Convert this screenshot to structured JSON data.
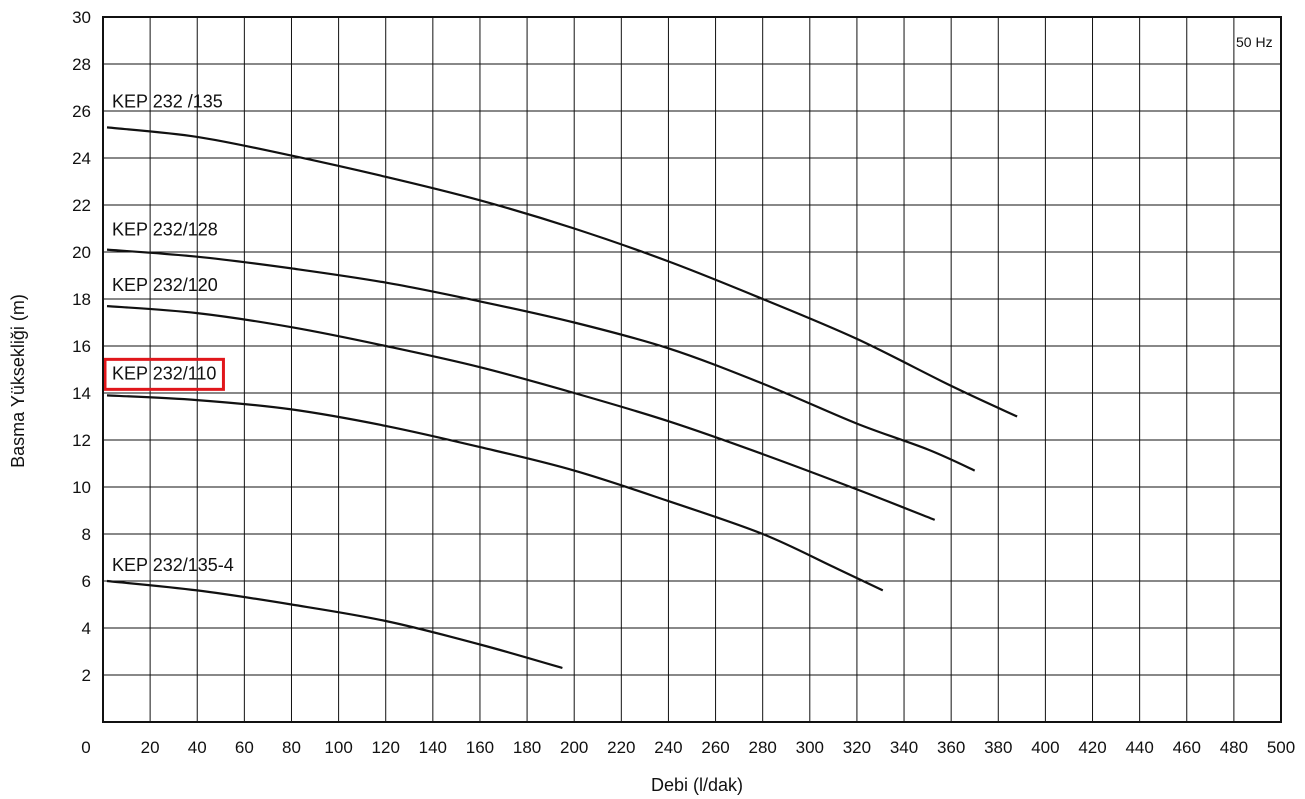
{
  "chart_data": {
    "type": "line",
    "xlabel": "Debi (l/dak)",
    "ylabel": "Basma Yüksekliği (m)",
    "xlim": [
      0,
      500
    ],
    "ylim": [
      0,
      30
    ],
    "xticks": [
      0,
      20,
      40,
      60,
      80,
      100,
      120,
      140,
      160,
      180,
      200,
      220,
      240,
      260,
      280,
      300,
      320,
      340,
      360,
      380,
      400,
      420,
      440,
      460,
      480,
      500
    ],
    "yticks": [
      2,
      4,
      6,
      8,
      10,
      12,
      14,
      16,
      18,
      20,
      22,
      24,
      26,
      28,
      30
    ],
    "grid": true,
    "annotation": "50 Hz",
    "highlighted_series": "KEP 232/110",
    "highlight_color": "#e0161b",
    "series": [
      {
        "name": "KEP 232 /135",
        "x": [
          0,
          40,
          80,
          120,
          160,
          200,
          240,
          280,
          320,
          360,
          388
        ],
        "y": [
          25.3,
          24.9,
          24.1,
          23.2,
          22.2,
          21.0,
          19.6,
          18.0,
          16.3,
          14.3,
          13.0
        ]
      },
      {
        "name": "KEP 232/128",
        "x": [
          0,
          40,
          80,
          120,
          160,
          200,
          240,
          280,
          320,
          350,
          370
        ],
        "y": [
          20.1,
          19.8,
          19.3,
          18.7,
          17.9,
          17.0,
          15.9,
          14.4,
          12.7,
          11.6,
          10.7
        ]
      },
      {
        "name": "KEP 232/120",
        "x": [
          0,
          40,
          80,
          120,
          160,
          200,
          240,
          280,
          320,
          353
        ],
        "y": [
          17.7,
          17.4,
          16.8,
          16.0,
          15.1,
          14.0,
          12.8,
          11.4,
          9.9,
          8.6
        ]
      },
      {
        "name": "KEP 232/110",
        "x": [
          0,
          40,
          80,
          120,
          160,
          200,
          240,
          280,
          310,
          331
        ],
        "y": [
          13.9,
          13.7,
          13.3,
          12.6,
          11.7,
          10.7,
          9.4,
          8.0,
          6.6,
          5.6
        ]
      },
      {
        "name": "KEP 232/135-4",
        "x": [
          0,
          40,
          80,
          120,
          160,
          195
        ],
        "y": [
          6.0,
          5.6,
          5.0,
          4.3,
          3.3,
          2.3
        ]
      }
    ]
  }
}
